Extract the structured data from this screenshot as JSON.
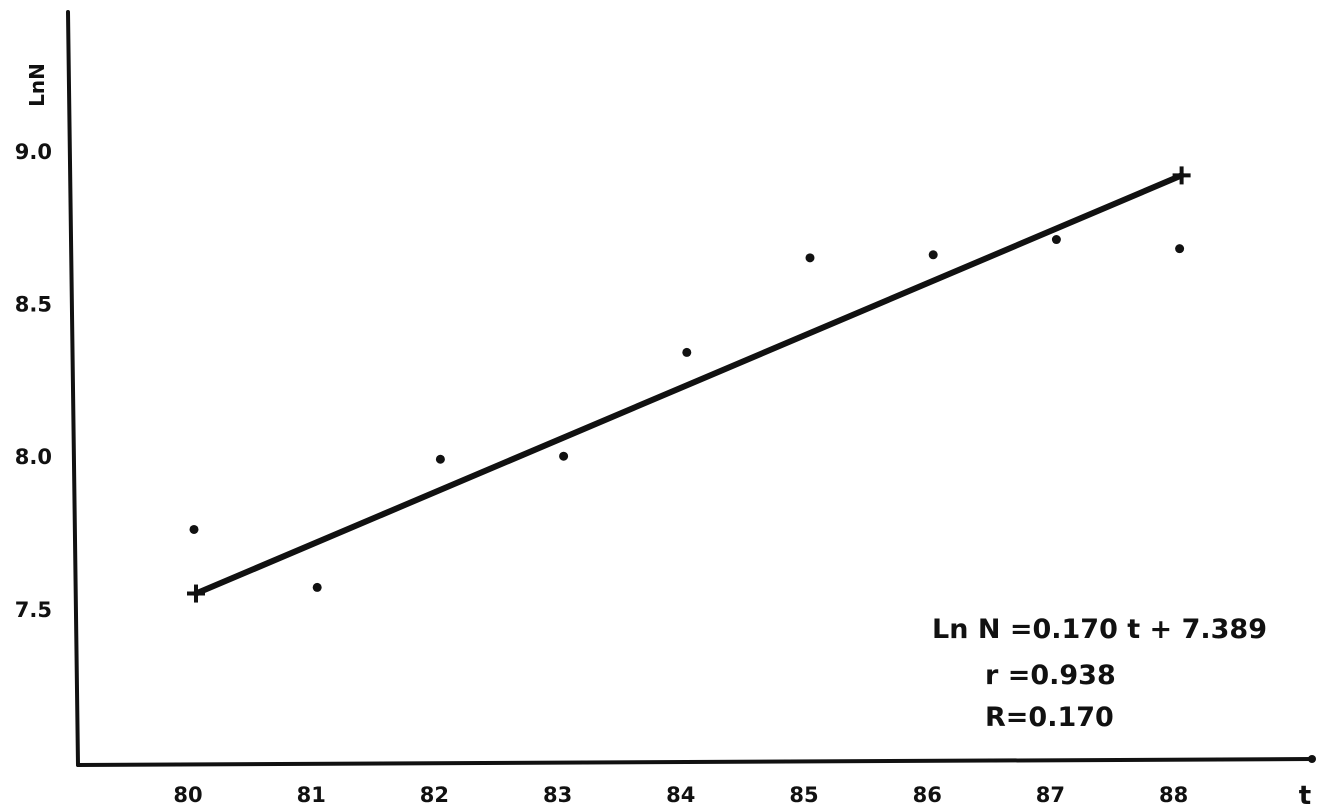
{
  "chart_data": {
    "type": "scatter",
    "title": "",
    "xlabel": "t",
    "ylabel": "LnN",
    "xlim": [
      79,
      89
    ],
    "ylim": [
      7.0,
      9.45
    ],
    "x_ticks": [
      80,
      81,
      82,
      83,
      84,
      85,
      86,
      87,
      88
    ],
    "x_tick_labels": [
      "80",
      "81",
      "82",
      "83",
      "84",
      "85",
      "86",
      "87",
      "88"
    ],
    "y_ticks": [
      7.5,
      8.0,
      8.5,
      9.0
    ],
    "y_tick_labels": [
      "7.5",
      "8.0",
      "8.5",
      "9.0"
    ],
    "grid": false,
    "legend": "none",
    "series": [
      {
        "type": "scatter",
        "x": [
          80,
          81,
          82,
          83,
          84,
          85,
          86,
          87,
          88
        ],
        "y": [
          7.76,
          7.57,
          7.99,
          8.0,
          8.34,
          8.65,
          8.66,
          8.71,
          8.68
        ]
      },
      {
        "type": "line",
        "x": [
          80,
          88
        ],
        "y": [
          7.55,
          8.92
        ]
      }
    ],
    "annotations": [
      "Ln N =0.170 t + 7.389",
      "r =0.938",
      "R=0.170"
    ]
  }
}
